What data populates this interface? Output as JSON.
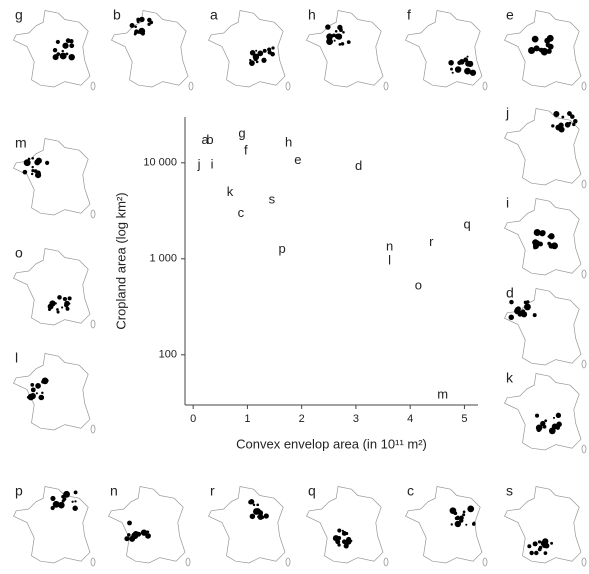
{
  "chart_data": {
    "type": "scatter",
    "x_label": "Convex envelop area (in 10¹¹ m²)",
    "y_label": "Cropland area (log km²)",
    "labels": [
      "a",
      "b",
      "g",
      "h",
      "f",
      "e",
      "j",
      "i",
      "d",
      "k",
      "s",
      "c",
      "q",
      "n",
      "r",
      "p",
      "l",
      "o",
      "m"
    ],
    "x": [
      0.22,
      0.31,
      0.9,
      1.76,
      0.97,
      1.93,
      0.11,
      0.35,
      3.05,
      0.68,
      1.45,
      0.88,
      5.05,
      3.62,
      4.39,
      1.64,
      3.62,
      4.15,
      4.6
    ],
    "values": [
      17000,
      17000,
      20000,
      16000,
      13300,
      10500,
      9500,
      9500,
      9100,
      4900,
      4100,
      2950,
      2250,
      1330,
      1470,
      1250,
      950,
      520,
      38
    ],
    "xlim": [
      -0.15,
      5.25
    ],
    "ylim": [
      30,
      30000
    ],
    "log_y": true,
    "xticks": [
      0,
      1,
      2,
      3,
      4,
      5
    ],
    "yticks": [
      100,
      {
        "value": 1000,
        "label": "1 000"
      },
      {
        "value": 10000,
        "label": "10 000"
      }
    ],
    "grid": false,
    "maps": [
      "g",
      "b",
      "a",
      "h",
      "f",
      "e",
      "j",
      "i",
      "d",
      "k",
      "m",
      "o",
      "l",
      "p",
      "n",
      "r",
      "q",
      "c",
      "s"
    ]
  }
}
